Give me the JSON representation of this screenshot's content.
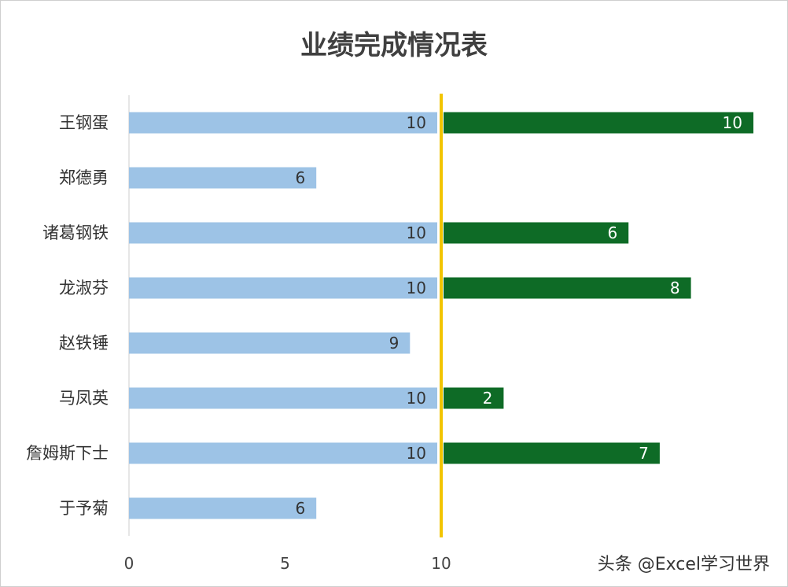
{
  "chart_data": {
    "type": "bar",
    "orientation": "horizontal",
    "title": "业绩完成情况表",
    "categories": [
      "王钢蛋",
      "郑德勇",
      "诸葛钢铁",
      "龙淑芬",
      "赵铁锤",
      "马凤英",
      "詹姆斯下士",
      "于予菊"
    ],
    "series": [
      {
        "values": [
          10,
          6,
          10,
          10,
          9,
          10,
          10,
          6
        ],
        "color": "#9dc3e6"
      },
      {
        "values": [
          10,
          0,
          6,
          8,
          0,
          2,
          7,
          0
        ],
        "color": "#0e6b26"
      }
    ],
    "xticks": [
      0,
      5,
      10
    ],
    "xlim": [
      0,
      20
    ],
    "reference_line": {
      "value": 10,
      "color": "#f2c500"
    }
  },
  "watermark": "头条 @Excel学习世界"
}
